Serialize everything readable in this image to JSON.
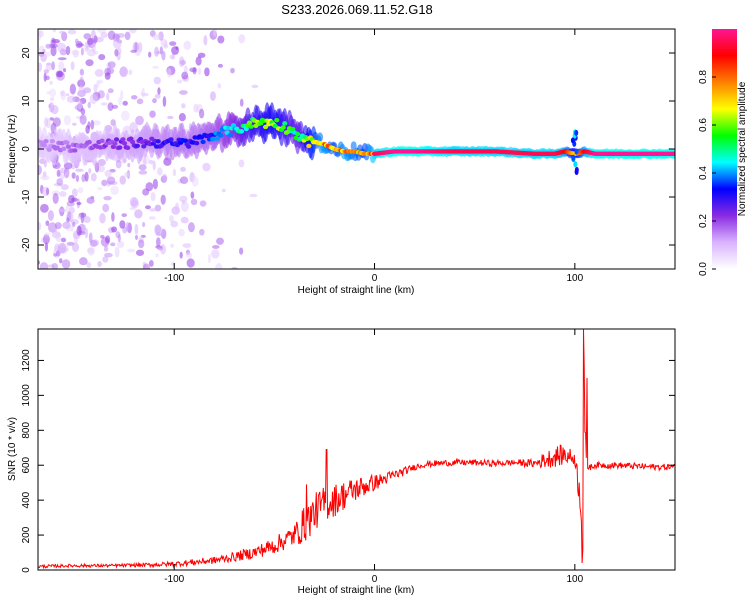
{
  "title": "S233.2026.069.11.52.G18",
  "chart_data": [
    {
      "type": "heatmap",
      "xlabel": "Height of straight line (km)",
      "ylabel": "Frequency (Hz)",
      "xlim": [
        -168,
        150
      ],
      "ylim": [
        -25,
        25
      ],
      "xticks": [
        -100,
        0,
        100
      ],
      "yticks": [
        -20,
        -10,
        0,
        10,
        20
      ],
      "colorbar": {
        "label": "Normalized spectral amplitude",
        "range": [
          0.0,
          1.0
        ],
        "ticks": [
          0.0,
          0.2,
          0.4,
          0.6,
          0.8
        ],
        "tick_labels": [
          "0.0",
          "0.2",
          "0.4",
          "0.6",
          "0.8"
        ],
        "colors": [
          "#ffffff",
          "#d9b3ff",
          "#8a2be2",
          "#0000ff",
          "#00ffff",
          "#00ff00",
          "#ffff00",
          "#ff8000",
          "#ff0000",
          "#ff1493"
        ]
      },
      "ridge": {
        "x": [
          -168,
          -150,
          -130,
          -110,
          -100,
          -90,
          -80,
          -70,
          -60,
          -50,
          -42,
          -38,
          -34,
          -30,
          -25,
          -20,
          -15,
          -10,
          -5,
          0,
          10,
          20,
          40,
          60,
          80,
          90,
          95,
          100,
          105,
          110,
          130,
          150
        ],
        "frequency": [
          1,
          0.5,
          1,
          1.5,
          1,
          1.5,
          3,
          4,
          5.5,
          5.5,
          4,
          3,
          1.5,
          1.5,
          1,
          0,
          -0.5,
          -0.5,
          -1,
          -1,
          -0.5,
          -0.5,
          -0.5,
          -0.5,
          -1,
          -1,
          -0.5,
          -1,
          -0.5,
          -1,
          -1,
          -1
        ],
        "amplitude": [
          0.15,
          0.2,
          0.25,
          0.3,
          0.35,
          0.35,
          0.4,
          0.5,
          0.65,
          0.7,
          0.6,
          0.55,
          0.7,
          0.8,
          0.9,
          0.8,
          0.9,
          0.85,
          0.8,
          0.95,
          1.0,
          1.0,
          0.95,
          0.95,
          0.95,
          0.95,
          0.9,
          0.7,
          0.9,
          1.0,
          1.0,
          1.0
        ]
      }
    },
    {
      "type": "line",
      "xlabel": "Height of straight line (km)",
      "ylabel": "SNR (10 * v/v)",
      "xlim": [
        -168,
        150
      ],
      "ylim": [
        0,
        1380
      ],
      "xticks": [
        -100,
        0,
        100
      ],
      "yticks": [
        0,
        200,
        400,
        600,
        800,
        1000,
        1200
      ],
      "series": [
        {
          "color": "#ff0000",
          "x": [
            -168,
            -150,
            -130,
            -110,
            -100,
            -90,
            -80,
            -70,
            -60,
            -50,
            -40,
            -35,
            -30,
            -25,
            -20,
            -15,
            -10,
            -5,
            0,
            5,
            10,
            15,
            20,
            25,
            30,
            40,
            50,
            60,
            70,
            80,
            85,
            90,
            95,
            100,
            103,
            104,
            104.5,
            105,
            106,
            108,
            110,
            120,
            130,
            140,
            150
          ],
          "values": [
            20,
            25,
            25,
            30,
            35,
            45,
            55,
            75,
            100,
            140,
            200,
            260,
            330,
            380,
            400,
            430,
            460,
            480,
            500,
            520,
            545,
            565,
            590,
            605,
            610,
            615,
            615,
            610,
            615,
            610,
            630,
            650,
            660,
            640,
            400,
            100,
            1380,
            700,
            600,
            590,
            600,
            600,
            595,
            590,
            590
          ],
          "noise_amplitude": [
            15,
            15,
            15,
            20,
            25,
            30,
            35,
            45,
            60,
            80,
            110,
            180,
            180,
            170,
            160,
            140,
            120,
            100,
            80,
            60,
            50,
            40,
            30,
            30,
            30,
            30,
            30,
            30,
            30,
            40,
            80,
            100,
            100,
            60,
            200,
            0,
            0,
            300,
            60,
            30,
            30,
            30,
            30,
            30,
            30
          ],
          "spikes": [
            {
              "x": -24,
              "value": 690
            },
            {
              "x": -34,
              "value": 490
            },
            {
              "x": 103.5,
              "value": 40
            },
            {
              "x": 104.3,
              "value": 1380
            },
            {
              "x": 106,
              "value": 1100
            }
          ]
        }
      ]
    }
  ]
}
